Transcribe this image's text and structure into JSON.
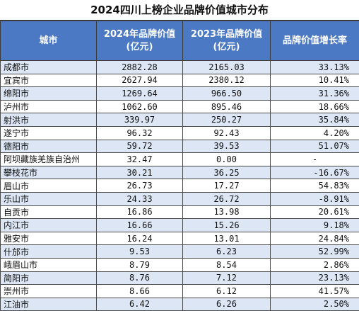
{
  "title": "2024四川上榜企业品牌价值城市分布",
  "headers": {
    "city": "城市",
    "v2024": "2024年品牌价值",
    "v2024_unit": "(亿元)",
    "v2023": "2023年品牌价值",
    "v2023_unit": "(亿元)",
    "growth": "品牌价值增长率"
  },
  "rows": [
    {
      "city": "成都市",
      "v2024": "2882.28",
      "v2023": "2165.03",
      "growth": "33.13%"
    },
    {
      "city": "宜宾市",
      "v2024": "2627.94",
      "v2023": "2380.12",
      "growth": "10.41%"
    },
    {
      "city": "绵阳市",
      "v2024": "1269.64",
      "v2023": "966.50",
      "growth": "31.36%"
    },
    {
      "city": "泸州市",
      "v2024": "1062.60",
      "v2023": "895.46",
      "growth": "18.66%"
    },
    {
      "city": "射洪市",
      "v2024": "339.97",
      "v2023": "250.27",
      "growth": "35.84%"
    },
    {
      "city": "遂宁市",
      "v2024": "96.32",
      "v2023": "92.43",
      "growth": "4.20%"
    },
    {
      "city": "德阳市",
      "v2024": "59.72",
      "v2023": "39.53",
      "growth": "51.07%"
    },
    {
      "city": "阿坝藏族羌族自治州",
      "v2024": "32.47",
      "v2023": "0.00",
      "growth": "-"
    },
    {
      "city": "攀枝花市",
      "v2024": "30.21",
      "v2023": "36.25",
      "growth": "-16.67%"
    },
    {
      "city": "眉山市",
      "v2024": "26.73",
      "v2023": "17.27",
      "growth": "54.83%"
    },
    {
      "city": "乐山市",
      "v2024": "24.33",
      "v2023": "26.72",
      "growth": "-8.91%"
    },
    {
      "city": "自贡市",
      "v2024": "16.86",
      "v2023": "13.98",
      "growth": "20.61%"
    },
    {
      "city": "内江市",
      "v2024": "16.66",
      "v2023": "15.26",
      "growth": "9.18%"
    },
    {
      "city": "雅安市",
      "v2024": "16.24",
      "v2023": "13.01",
      "growth": "24.84%"
    },
    {
      "city": "什邡市",
      "v2024": "9.53",
      "v2023": "6.23",
      "growth": "52.99%"
    },
    {
      "city": "峨眉山市",
      "v2024": "8.79",
      "v2023": "8.54",
      "growth": "2.86%"
    },
    {
      "city": "简阳市",
      "v2024": "8.76",
      "v2023": "7.12",
      "growth": "23.13%"
    },
    {
      "city": "崇州市",
      "v2024": "8.66",
      "v2023": "6.12",
      "growth": "41.57%"
    },
    {
      "city": "江油市",
      "v2024": "6.42",
      "v2023": "6.26",
      "growth": "2.50%"
    }
  ]
}
